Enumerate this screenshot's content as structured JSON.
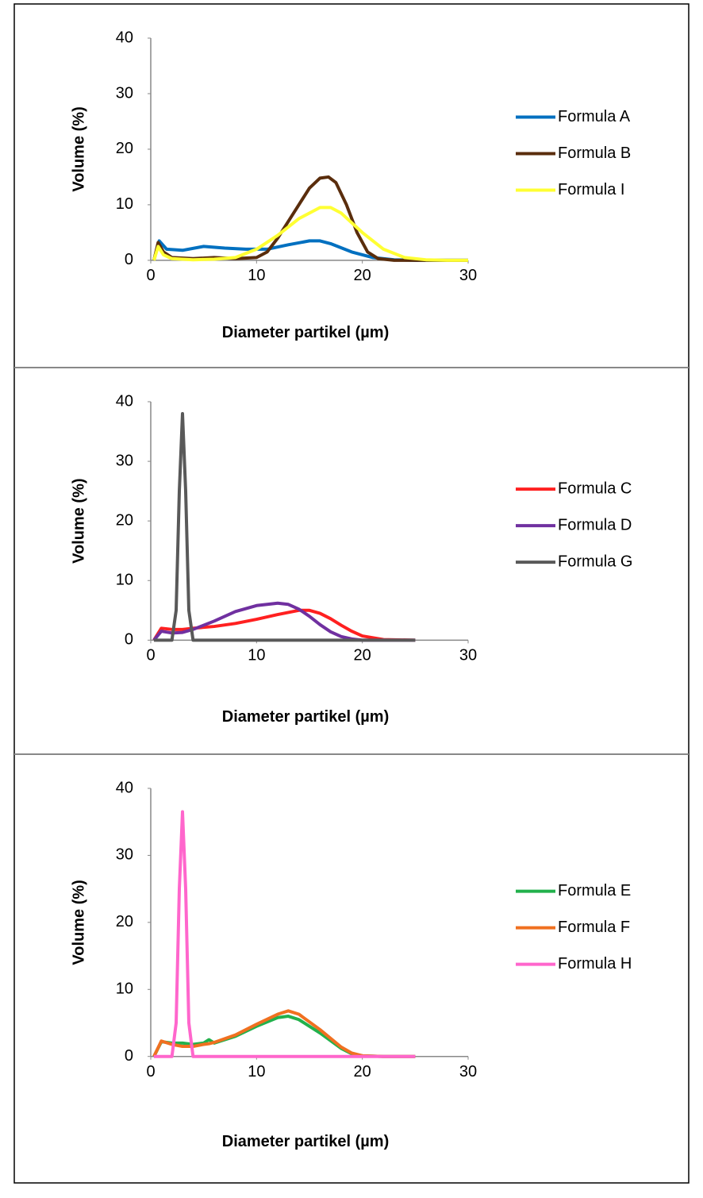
{
  "chart_data": [
    {
      "type": "line",
      "x_label": "Diameter partikel (µm)",
      "y_label": "Volume (%)",
      "xlim": [
        0,
        30
      ],
      "ylim": [
        0,
        40
      ],
      "xticks": [
        0,
        10,
        20,
        30
      ],
      "yticks": [
        0,
        10,
        20,
        30,
        40
      ],
      "grid": false,
      "legend": "right",
      "series": [
        {
          "name": "Formula A",
          "color": "#0070c0",
          "x": [
            0.3,
            0.8,
            1.5,
            3,
            5,
            7,
            9,
            11,
            13,
            15,
            16,
            17,
            19,
            21,
            23,
            25,
            27,
            30
          ],
          "values": [
            0,
            3.5,
            2,
            1.8,
            2.5,
            2.2,
            2,
            2,
            2.8,
            3.5,
            3.5,
            3,
            1.5,
            0.5,
            0.1,
            0,
            0,
            0
          ]
        },
        {
          "name": "Formula B",
          "color": "#5a2d0c",
          "x": [
            0.3,
            0.7,
            1.2,
            2,
            4,
            6,
            8,
            10,
            11,
            12,
            13,
            14,
            15,
            16,
            16.8,
            17.5,
            18.5,
            19.5,
            20.5,
            21.5,
            23,
            25,
            30
          ],
          "values": [
            0,
            3.2,
            1.5,
            0.5,
            0.3,
            0.5,
            0.3,
            0.5,
            1.5,
            4,
            7,
            10,
            13,
            14.8,
            15,
            14,
            10,
            5,
            1.5,
            0.3,
            0,
            0,
            0
          ]
        },
        {
          "name": "Formula I",
          "color": "#ffff33",
          "x": [
            0.3,
            0.7,
            1.2,
            2,
            4,
            6,
            8,
            10,
            12,
            14,
            16,
            17,
            18,
            20,
            22,
            24,
            26,
            28,
            30
          ],
          "values": [
            0,
            2.5,
            1,
            0.3,
            0.1,
            0.2,
            0.5,
            2,
            4.5,
            7.5,
            9.5,
            9.5,
            8.5,
            5,
            2,
            0.5,
            0.1,
            0,
            0
          ]
        }
      ]
    },
    {
      "type": "line",
      "x_label": "Diameter partikel (µm)",
      "y_label": "Volume (%)",
      "xlim": [
        0,
        30
      ],
      "ylim": [
        0,
        40
      ],
      "xticks": [
        0,
        10,
        20,
        30
      ],
      "yticks": [
        0,
        10,
        20,
        30,
        40
      ],
      "grid": false,
      "legend": "right",
      "series": [
        {
          "name": "Formula C",
          "color": "#ff2020",
          "x": [
            0.3,
            1,
            2,
            3,
            4,
            6,
            8,
            10,
            12,
            14,
            15,
            16,
            17,
            18,
            19,
            20,
            22,
            25
          ],
          "values": [
            0,
            2,
            1.8,
            1.8,
            2,
            2.3,
            2.8,
            3.5,
            4.3,
            5,
            5,
            4.5,
            3.6,
            2.5,
            1.5,
            0.7,
            0.1,
            0
          ]
        },
        {
          "name": "Formula D",
          "color": "#7030a0",
          "x": [
            0.3,
            1,
            2,
            3,
            4,
            6,
            8,
            10,
            12,
            13,
            14,
            15,
            16,
            17,
            18,
            19,
            20,
            22,
            25
          ],
          "values": [
            0,
            1.5,
            1.2,
            1.3,
            1.8,
            3.2,
            4.8,
            5.8,
            6.2,
            6,
            5.2,
            4,
            2.6,
            1.4,
            0.6,
            0.2,
            0,
            0,
            0
          ]
        },
        {
          "name": "Formula G",
          "color": "#595959",
          "x": [
            0.3,
            2,
            2.4,
            2.7,
            3,
            3.3,
            3.6,
            4,
            6,
            10,
            15,
            20,
            25
          ],
          "values": [
            0,
            0,
            5,
            25,
            38,
            25,
            5,
            0,
            0,
            0,
            0,
            0,
            0
          ]
        }
      ]
    },
    {
      "type": "line",
      "x_label": "Diameter partikel (µm)",
      "y_label": "Volume (%)",
      "xlim": [
        0,
        30
      ],
      "ylim": [
        0,
        40
      ],
      "xticks": [
        0,
        10,
        20,
        30
      ],
      "yticks": [
        0,
        10,
        20,
        30,
        40
      ],
      "grid": false,
      "legend": "right",
      "series": [
        {
          "name": "Formula E",
          "color": "#22b14c",
          "x": [
            0.3,
            1,
            2,
            3,
            4,
            5,
            5.5,
            6,
            8,
            10,
            12,
            13,
            14,
            16,
            18,
            19,
            20,
            22,
            25
          ],
          "values": [
            0,
            2.2,
            2,
            2,
            1.8,
            2,
            2.5,
            2,
            3,
            4.5,
            5.8,
            6,
            5.5,
            3.5,
            1.2,
            0.4,
            0.1,
            0,
            0
          ]
        },
        {
          "name": "Formula F",
          "color": "#f07020",
          "x": [
            0.3,
            1,
            2,
            3,
            4,
            5,
            5.5,
            6,
            8,
            10,
            12,
            13,
            14,
            16,
            18,
            19,
            20,
            22,
            25
          ],
          "values": [
            0,
            2.3,
            1.8,
            1.5,
            1.5,
            1.8,
            1.9,
            2.1,
            3.2,
            4.8,
            6.3,
            6.8,
            6.3,
            4,
            1.4,
            0.5,
            0.1,
            0,
            0
          ]
        },
        {
          "name": "Formula H",
          "color": "#ff66cc",
          "x": [
            0.3,
            2,
            2.4,
            2.7,
            3,
            3.3,
            3.6,
            4,
            6,
            10,
            15,
            20,
            25
          ],
          "values": [
            0,
            0,
            5,
            25,
            36.5,
            25,
            5,
            0,
            0,
            0,
            0,
            0,
            0
          ]
        }
      ]
    }
  ]
}
